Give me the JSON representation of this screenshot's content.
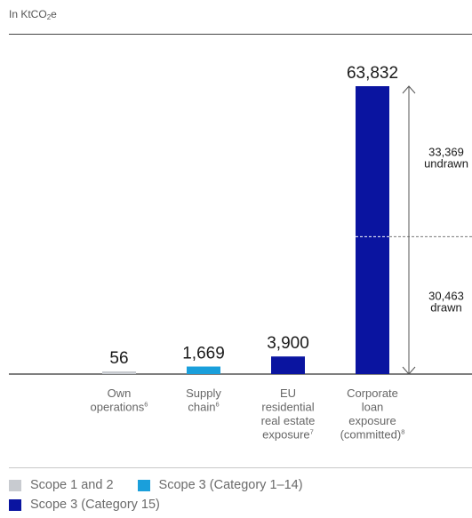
{
  "unit_label": {
    "prefix": "In KtCO",
    "sub": "2",
    "suffix": "e"
  },
  "colors": {
    "scope12": "#c8cbd0",
    "scope3_1_14": "#1a9fdb",
    "scope3_15": "#0a14a0",
    "axis": "#333333",
    "text": "#1a1a1a",
    "label": "#666666"
  },
  "chart_data": {
    "type": "bar",
    "title": "",
    "xlabel": "",
    "ylabel": "",
    "ylim": [
      0,
      63832
    ],
    "grid": false,
    "legend_position": "bottom-left",
    "categories": [
      {
        "lines": [
          "Own",
          "operations"
        ],
        "sup": "6"
      },
      {
        "lines": [
          "Supply",
          "chain"
        ],
        "sup": "6"
      },
      {
        "lines": [
          "EU",
          "residential",
          "real estate",
          "exposure"
        ],
        "sup": "7"
      },
      {
        "lines": [
          "Corporate",
          "loan",
          "exposure",
          "(committed)"
        ],
        "sup": "8"
      }
    ],
    "values": [
      56,
      1669,
      3900,
      63832
    ],
    "value_labels": [
      "56",
      "1,669",
      "3,900",
      "63,832"
    ],
    "series_keys": [
      "scope12",
      "scope3_1_14",
      "scope3_15",
      "scope3_15"
    ],
    "breakdown": {
      "bar_index": 3,
      "segments": [
        {
          "value": 30463,
          "label_lines": [
            "30,463",
            "drawn"
          ]
        },
        {
          "value": 33369,
          "label_lines": [
            "33,369",
            "undrawn"
          ]
        }
      ]
    }
  },
  "legend": [
    {
      "key": "scope12",
      "label": "Scope 1 and 2"
    },
    {
      "key": "scope3_1_14",
      "label": "Scope 3 (Category 1–14)"
    },
    {
      "key": "scope3_15",
      "label": "Scope 3 (Category 15)"
    }
  ]
}
